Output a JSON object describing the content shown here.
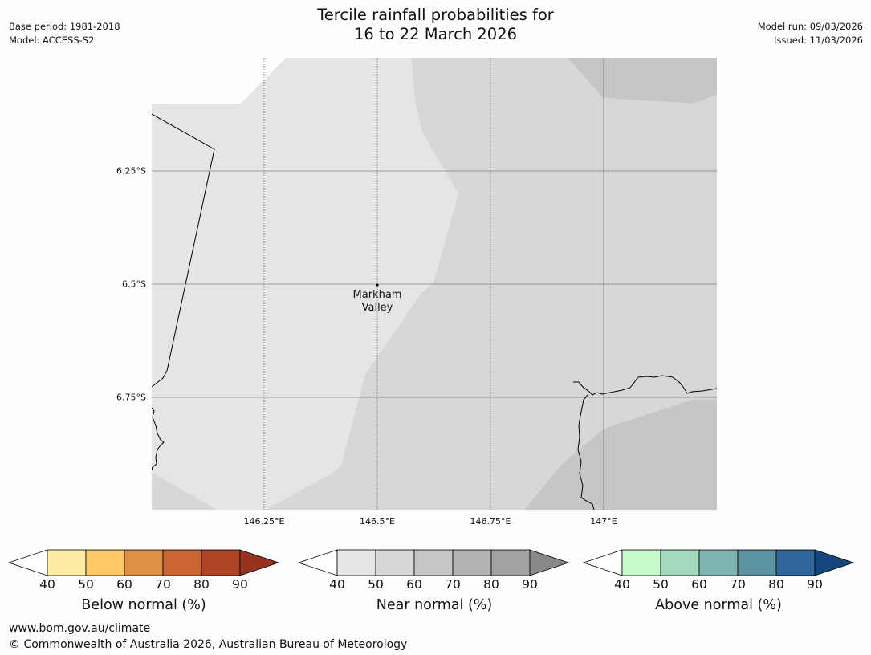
{
  "header": {
    "base_period": "Base period: 1981-2018",
    "model": "Model: ACCESS-S2",
    "title_line1": "Tercile rainfall probabilities for",
    "title_line2": "16 to 22 March 2026",
    "model_run": "Model run: 09/03/2026",
    "issued": "Issued: 11/03/2026"
  },
  "map": {
    "lat_ticks": [
      "6.25°S",
      "6.5°S",
      "6.75°S"
    ],
    "lon_ticks": [
      "146.25°E",
      "146.5°E",
      "146.75°E",
      "147°E"
    ],
    "place": {
      "name_line1": "Markham",
      "name_line2": "Valley"
    },
    "fill_colors": {
      "near_40_50": "#e5e5e5",
      "near_50_60": "#d7d7d7",
      "near_60_70": "#c6c6c6"
    }
  },
  "colorbars": [
    {
      "label": "Below normal (%)",
      "ticks": [
        "40",
        "50",
        "60",
        "70",
        "80",
        "90"
      ],
      "low_extend": "#ffffff",
      "colors": [
        "#fdeca1",
        "#fec966",
        "#e09044",
        "#cc6532",
        "#ae4425"
      ],
      "high_extend": "#97321f"
    },
    {
      "label": "Near normal (%)",
      "ticks": [
        "40",
        "50",
        "60",
        "70",
        "80",
        "90"
      ],
      "low_extend": "#ffffff",
      "colors": [
        "#e5e5e5",
        "#d7d7d7",
        "#c6c6c6",
        "#b3b3b3",
        "#a1a1a1"
      ],
      "high_extend": "#888888"
    },
    {
      "label": "Above normal (%)",
      "ticks": [
        "40",
        "50",
        "60",
        "70",
        "80",
        "90"
      ],
      "low_extend": "#ffffff",
      "colors": [
        "#c8fbcc",
        "#a3d9bc",
        "#7fb5b0",
        "#5b93a0",
        "#2f6699"
      ],
      "high_extend": "#13477e"
    }
  ],
  "footer": {
    "website": "www.bom.gov.au/climate",
    "copyright": "© Commonwealth of Australia 2026, Australian Bureau of Meteorology"
  }
}
